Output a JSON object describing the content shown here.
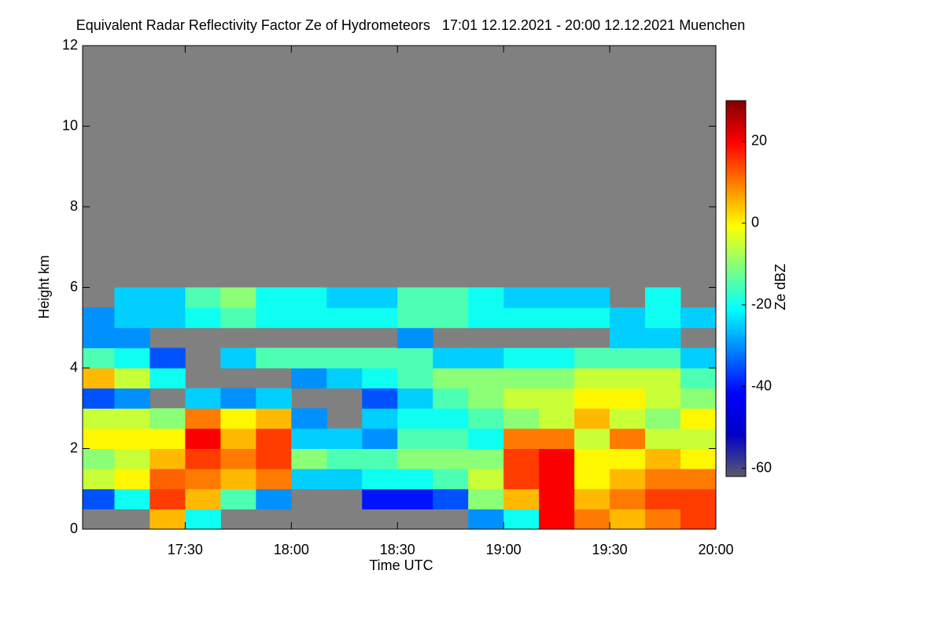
{
  "chart_data": {
    "type": "heatmap",
    "title": "Equivalent Radar Reflectivity Factor Ze of Hydrometeors   17:01 12.12.2021 - 20:00 12.12.2021 Muenchen",
    "xlabel": "Time UTC",
    "ylabel": "Height km",
    "xlim": [
      1,
      180
    ],
    "ylim": [
      0,
      12
    ],
    "xticks": [
      {
        "value": 30,
        "label": "17:30"
      },
      {
        "value": 60,
        "label": "18:00"
      },
      {
        "value": 90,
        "label": "18:30"
      },
      {
        "value": 120,
        "label": "19:00"
      },
      {
        "value": 150,
        "label": "19:30"
      },
      {
        "value": 180,
        "label": "20:00"
      }
    ],
    "yticks": [
      0,
      2,
      4,
      6,
      8,
      10,
      12
    ],
    "missing_color": "#808080",
    "xbins": [
      1,
      10,
      20,
      30,
      40,
      50,
      60,
      70,
      80,
      90,
      100,
      110,
      120,
      130,
      140,
      150,
      160,
      170,
      180
    ],
    "ybins": [
      0,
      0.5,
      1,
      1.5,
      2,
      2.5,
      3,
      3.5,
      4,
      4.5,
      5,
      5.5,
      6
    ],
    "z": [
      [
        null,
        null,
        5,
        -20,
        null,
        null,
        null,
        null,
        null,
        null,
        null,
        -30,
        -20,
        20,
        10,
        5,
        10,
        15
      ],
      [
        -35,
        -20,
        15,
        5,
        -15,
        -30,
        null,
        null,
        -40,
        -40,
        -35,
        -10,
        5,
        20,
        5,
        10,
        15,
        15
      ],
      [
        -5,
        0,
        12,
        10,
        5,
        10,
        -25,
        -25,
        -20,
        -20,
        -15,
        -5,
        15,
        20,
        0,
        5,
        10,
        10
      ],
      [
        -10,
        -5,
        5,
        15,
        10,
        15,
        -10,
        -15,
        -15,
        -10,
        -10,
        -10,
        15,
        20,
        0,
        0,
        5,
        0
      ],
      [
        0,
        0,
        0,
        20,
        5,
        15,
        -25,
        -25,
        -30,
        -15,
        -15,
        -20,
        10,
        10,
        -5,
        10,
        -5,
        -5
      ],
      [
        -5,
        -5,
        -10,
        10,
        0,
        5,
        -30,
        null,
        -25,
        -20,
        -20,
        -15,
        -10,
        -5,
        5,
        -5,
        -10,
        0
      ],
      [
        -35,
        -30,
        null,
        -25,
        -30,
        -25,
        null,
        null,
        -35,
        -25,
        -15,
        -10,
        -5,
        -5,
        0,
        0,
        -5,
        -10
      ],
      [
        5,
        -5,
        -20,
        null,
        null,
        null,
        -30,
        -25,
        -20,
        -15,
        -10,
        -10,
        -10,
        -10,
        -5,
        -5,
        -5,
        -15
      ],
      [
        -15,
        -20,
        -35,
        null,
        -25,
        -15,
        -15,
        -15,
        -15,
        -15,
        -25,
        -25,
        -20,
        -20,
        -15,
        -15,
        -15,
        -25
      ],
      [
        -30,
        -30,
        null,
        null,
        null,
        null,
        null,
        null,
        null,
        -30,
        null,
        null,
        null,
        null,
        null,
        -25,
        -25,
        null
      ],
      [
        -30,
        -25,
        -25,
        -20,
        -15,
        -20,
        -20,
        -20,
        -20,
        -15,
        -15,
        -20,
        -20,
        -20,
        -20,
        -25,
        -20,
        -25
      ],
      [
        null,
        -25,
        -25,
        -15,
        -10,
        -20,
        -20,
        -25,
        -25,
        -15,
        -15,
        -20,
        -25,
        -25,
        -25,
        null,
        -20,
        null
      ]
    ],
    "colorbar": {
      "label": "Ze dBZ",
      "lim": [
        -62,
        30
      ],
      "ticks": [
        20,
        0,
        -20,
        -40,
        -60
      ],
      "colors": [
        "#5a5a6e",
        "#0000c8",
        "#0000ff",
        "#0080ff",
        "#00ffff",
        "#80ff80",
        "#ffff00",
        "#ff8000",
        "#ff0000",
        "#800000"
      ]
    }
  }
}
